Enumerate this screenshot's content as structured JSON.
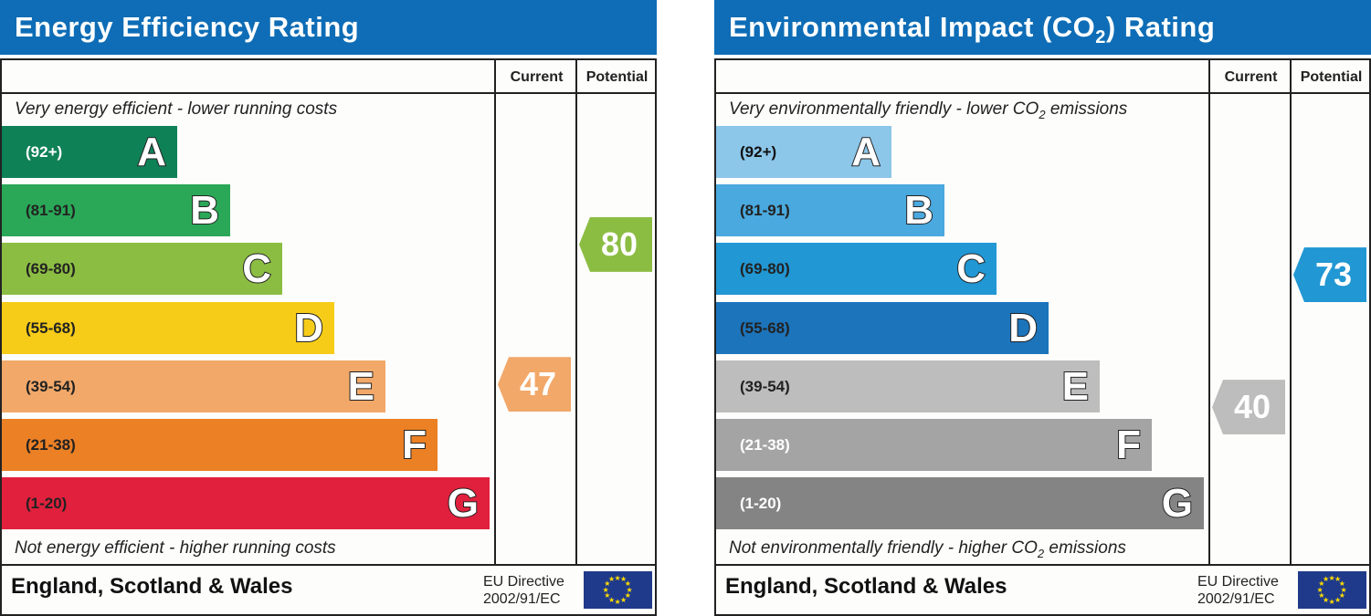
{
  "chart_data": [
    {
      "type": "table",
      "title": "Energy Efficiency Rating",
      "columns": [
        "Current",
        "Potential"
      ],
      "top_caption": "Very energy efficient - lower running costs",
      "bottom_caption": "Not energy efficient - higher running costs",
      "bands": [
        {
          "letter": "A",
          "range": "(92+)",
          "min": 92,
          "max": 100,
          "color": "#0f8157",
          "text_color": "#ffffff"
        },
        {
          "letter": "B",
          "range": "(81-91)",
          "min": 81,
          "max": 91,
          "color": "#2aa857",
          "text_color": "#222222"
        },
        {
          "letter": "C",
          "range": "(69-80)",
          "min": 69,
          "max": 80,
          "color": "#8cbd43",
          "text_color": "#222222"
        },
        {
          "letter": "D",
          "range": "(55-68)",
          "min": 55,
          "max": 68,
          "color": "#f6cc18",
          "text_color": "#222222"
        },
        {
          "letter": "E",
          "range": "(39-54)",
          "min": 39,
          "max": 54,
          "color": "#f2a869",
          "text_color": "#222222"
        },
        {
          "letter": "F",
          "range": "(21-38)",
          "min": 21,
          "max": 38,
          "color": "#ec8025",
          "text_color": "#222222"
        },
        {
          "letter": "G",
          "range": "(1-20)",
          "min": 1,
          "max": 20,
          "color": "#e0203c",
          "text_color": "#222222"
        }
      ],
      "current": {
        "value": 47,
        "color": "#f2a869"
      },
      "potential": {
        "value": 80,
        "color": "#8cbd43"
      },
      "footer": {
        "region": "England, Scotland & Wales",
        "directive_line1": "EU Directive",
        "directive_line2": "2002/91/EC"
      }
    },
    {
      "type": "table",
      "title": "Environmental Impact (CO",
      "title_sub": "2",
      "title_end": ") Rating",
      "columns": [
        "Current",
        "Potential"
      ],
      "top_caption": "Very environmentally friendly - lower CO",
      "top_caption_sub": "2",
      "top_caption_end": " emissions",
      "bottom_caption": "Not environmentally friendly - higher CO",
      "bottom_caption_sub": "2",
      "bottom_caption_end": " emissions",
      "bands": [
        {
          "letter": "A",
          "range": "(92+)",
          "min": 92,
          "max": 100,
          "color": "#8cc6e9",
          "text_color": "#111111"
        },
        {
          "letter": "B",
          "range": "(81-91)",
          "min": 81,
          "max": 91,
          "color": "#4aa9de",
          "text_color": "#222222"
        },
        {
          "letter": "C",
          "range": "(69-80)",
          "min": 69,
          "max": 80,
          "color": "#2197d3",
          "text_color": "#222222"
        },
        {
          "letter": "D",
          "range": "(55-68)",
          "min": 55,
          "max": 68,
          "color": "#1c74bb",
          "text_color": "#222222"
        },
        {
          "letter": "E",
          "range": "(39-54)",
          "min": 39,
          "max": 54,
          "color": "#bdbdbd",
          "text_color": "#222222"
        },
        {
          "letter": "F",
          "range": "(21-38)",
          "min": 21,
          "max": 38,
          "color": "#a4a4a4",
          "text_color": "#ffffff"
        },
        {
          "letter": "G",
          "range": "(1-20)",
          "min": 1,
          "max": 20,
          "color": "#848484",
          "text_color": "#ffffff"
        }
      ],
      "current": {
        "value": 40,
        "color": "#bdbdbd"
      },
      "potential": {
        "value": 73,
        "color": "#2197d3"
      },
      "footer": {
        "region": "England, Scotland & Wales",
        "directive_line1": "EU Directive",
        "directive_line2": "2002/91/EC"
      }
    }
  ]
}
